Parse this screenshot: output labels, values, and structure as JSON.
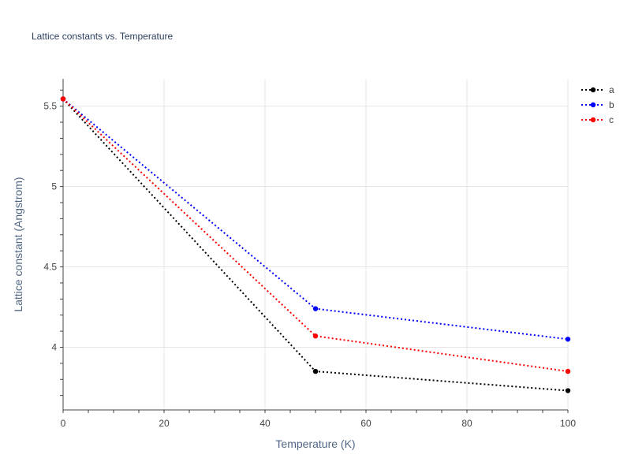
{
  "chart_data": {
    "type": "line",
    "title": "Lattice constants vs. Temperature",
    "xlabel": "Temperature (K)",
    "ylabel": "Lattice constant (Angstrom)",
    "xlim": [
      0,
      100
    ],
    "ylim": [
      3.61,
      5.67
    ],
    "xticks": [
      0,
      20,
      40,
      60,
      80,
      100
    ],
    "xtick_labels": [
      "0",
      "20",
      "40",
      "60",
      "80",
      "100"
    ],
    "yticks": [
      4,
      4.5,
      5,
      5.5
    ],
    "ytick_labels": [
      "4",
      "4.5",
      "5",
      "5.5"
    ],
    "grid": true,
    "legend_position": "top-right",
    "x": [
      0,
      50,
      100
    ],
    "series": [
      {
        "name": "a",
        "color": "#000000",
        "line_style": "dotted",
        "marker": "circle",
        "values": [
          5.545,
          3.85,
          3.73
        ]
      },
      {
        "name": "b",
        "color": "#0000ff",
        "line_style": "dotted",
        "marker": "circle",
        "values": [
          5.545,
          4.24,
          4.05
        ]
      },
      {
        "name": "c",
        "color": "#ff0000",
        "line_style": "dotted",
        "marker": "circle",
        "values": [
          5.545,
          4.07,
          3.85
        ]
      }
    ]
  }
}
